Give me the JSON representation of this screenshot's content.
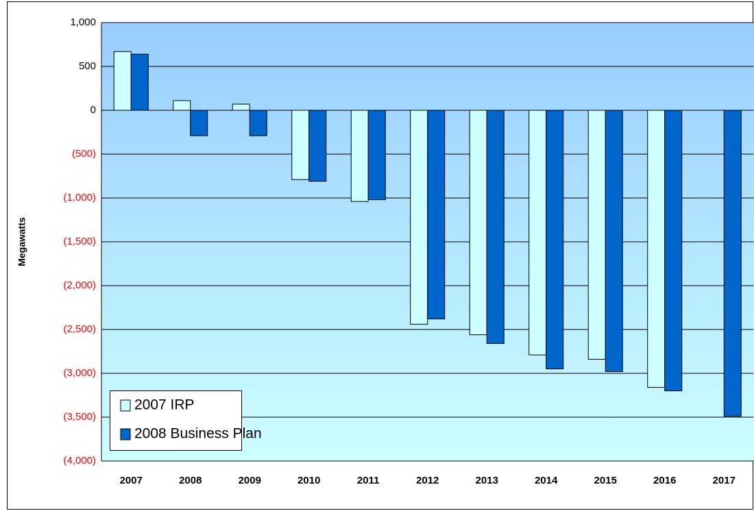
{
  "chart_data": {
    "type": "bar",
    "y_axis_label": "Megawatts",
    "categories": [
      "2007",
      "2008",
      "2009",
      "2010",
      "2011",
      "2012",
      "2013",
      "2014",
      "2015",
      "2016",
      "2017"
    ],
    "series": [
      {
        "name": "2007 IRP",
        "color": "#ccffff",
        "values": [
          670,
          110,
          70,
          -790,
          -1040,
          -2440,
          -2560,
          -2790,
          -2840,
          -3160,
          null
        ]
      },
      {
        "name": "2008 Business Plan",
        "color": "#0066cc",
        "values": [
          640,
          -290,
          -290,
          -810,
          -1020,
          -2380,
          -2660,
          -2950,
          -2980,
          -3200,
          -3490
        ]
      }
    ],
    "ylim": [
      -4000,
      1000
    ],
    "yticks": [
      {
        "value": 1000,
        "label": "1,000"
      },
      500,
      0,
      {
        "value": -500,
        "label": "(500)"
      },
      {
        "value": -1000,
        "label": "(1,000)"
      },
      {
        "value": -1500,
        "label": "(1,500)"
      },
      {
        "value": -2000,
        "label": "(2,000)"
      },
      {
        "value": -2500,
        "label": "(2,500)"
      },
      {
        "value": -3000,
        "label": "(3,000)"
      },
      {
        "value": -3500,
        "label": "(3,500)"
      },
      {
        "value": -4000,
        "label": "(4,000)"
      }
    ],
    "negative_tick_color": "#ff0000",
    "grid": true,
    "legend": "bottom-left"
  }
}
